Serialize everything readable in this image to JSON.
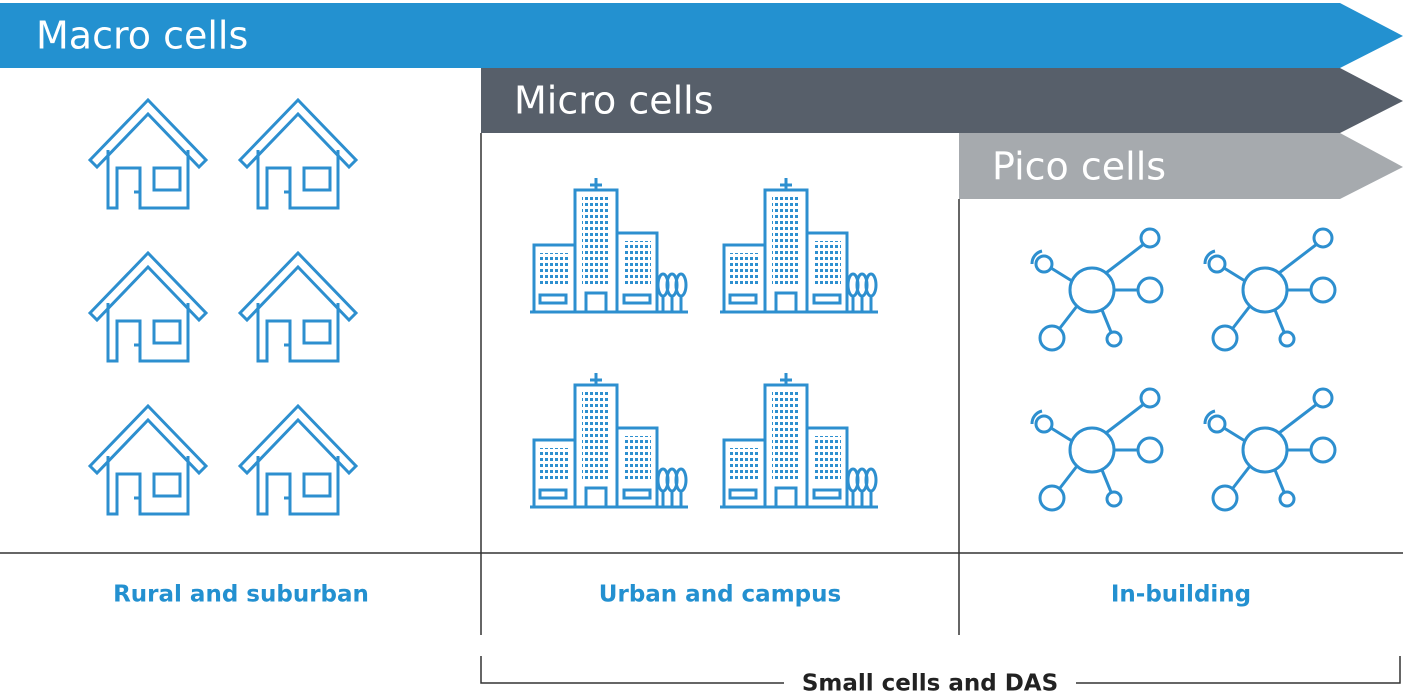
{
  "bands": [
    {
      "label": "Macro cells"
    },
    {
      "label": "Micro cells"
    },
    {
      "label": "Pico cells"
    }
  ],
  "columns": [
    {
      "label": "Rural and suburban"
    },
    {
      "label": "Urban and campus"
    },
    {
      "label": "In-building"
    }
  ],
  "bracket": {
    "label": "Small cells and DAS"
  }
}
